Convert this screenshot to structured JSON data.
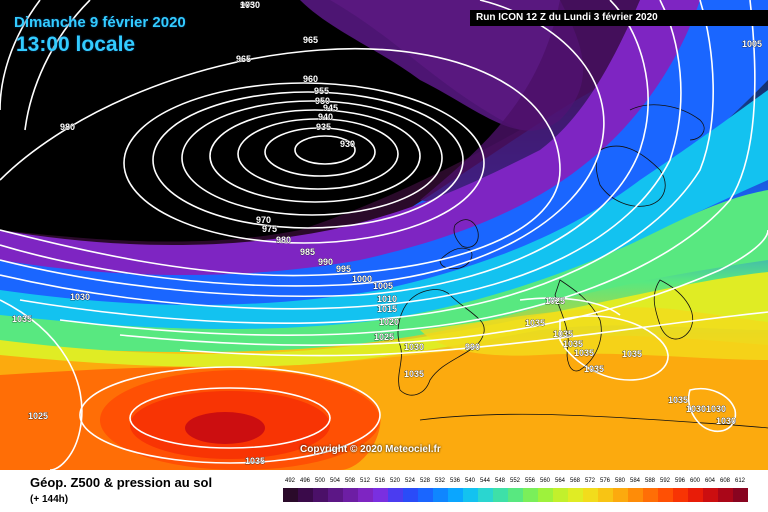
{
  "header": {
    "date": "Dimanche 9 février 2020",
    "time": "13:00 locale",
    "run": "Run ICON 12 Z du Lundi 3 février 2020"
  },
  "copyright": "Copyright © 2020 Meteociel.fr",
  "footer": {
    "title": "Géop. Z500 & pression au sol",
    "subtitle": "(+ 144h)"
  },
  "legend": {
    "values": [
      "492",
      "496",
      "500",
      "504",
      "508",
      "512",
      "516",
      "520",
      "524",
      "528",
      "532",
      "536",
      "540",
      "544",
      "548",
      "552",
      "556",
      "560",
      "564",
      "568",
      "572",
      "576",
      "580",
      "584",
      "588",
      "592",
      "596",
      "600",
      "604",
      "608",
      "612"
    ],
    "colors": [
      "#2a0a2a",
      "#3a0a4a",
      "#4b1068",
      "#5c1786",
      "#6d1ea4",
      "#7e25c2",
      "#7a2fe0",
      "#4b3cf0",
      "#2a4cf8",
      "#1a66ff",
      "#0f86ff",
      "#0aa6ff",
      "#13c2f0",
      "#2ad6d0",
      "#3ee0a8",
      "#58e880",
      "#7aef5a",
      "#9ef23c",
      "#c2f02c",
      "#e0ec24",
      "#f2dc1c",
      "#f8c414",
      "#fcaa0e",
      "#fe8c08",
      "#ff6e06",
      "#ff5004",
      "#f83404",
      "#e81c08",
      "#cc0e10",
      "#aa0618",
      "#880420"
    ]
  },
  "isobar_labels": {
    "low_center": "930",
    "low_ring": [
      "935",
      "940",
      "945",
      "950",
      "955",
      "960",
      "965",
      "970",
      "975",
      "980",
      "985",
      "990",
      "995",
      "1000",
      "1005",
      "1010",
      "1015",
      "1020",
      "1025",
      "1030"
    ],
    "top_left": [
      "975",
      "965",
      "965",
      "980",
      "990"
    ],
    "high_atlantic": [
      "1035",
      "1035",
      "1030",
      "1025",
      "1035"
    ],
    "europe": [
      "1025",
      "1035",
      "1035",
      "1035",
      "1035",
      "1035",
      "1035",
      "1035",
      "1030",
      "1030",
      "1030",
      "1005",
      "1030"
    ]
  }
}
